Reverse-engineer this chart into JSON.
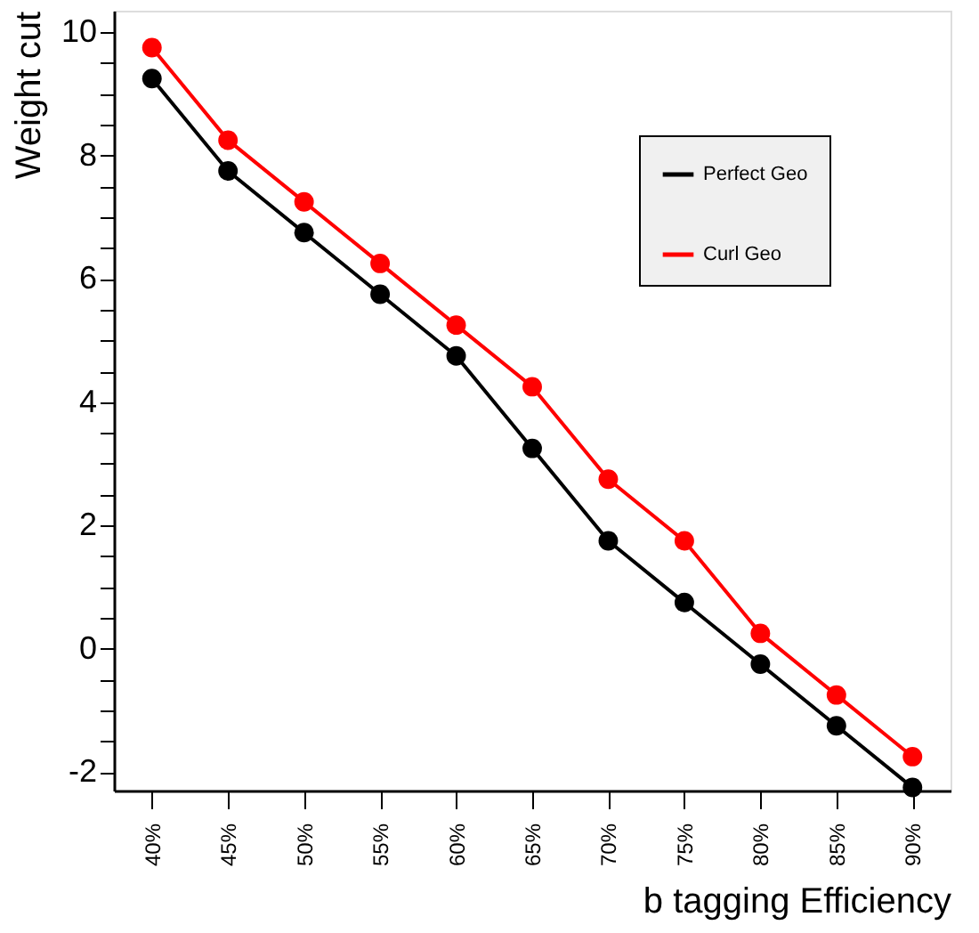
{
  "chart_data": {
    "type": "line",
    "xlabel": "b tagging Efficiency",
    "ylabel": "Weight cut",
    "categories": [
      "40%",
      "45%",
      "50%",
      "55%",
      "60%",
      "65%",
      "70%",
      "75%",
      "80%",
      "85%",
      "90%"
    ],
    "series": [
      {
        "name": "Perfect Geo",
        "color": "#000000",
        "values": [
          9.25,
          7.75,
          6.75,
          5.75,
          4.75,
          3.25,
          1.75,
          0.75,
          -0.25,
          -1.25,
          -2.25
        ]
      },
      {
        "name": "Curl Geo",
        "color": "#ff0000",
        "values": [
          9.75,
          8.25,
          7.25,
          6.25,
          5.25,
          4.25,
          2.75,
          1.75,
          0.25,
          -0.75,
          -1.75
        ]
      }
    ],
    "ylim": [
      -2.3,
      10.35
    ],
    "yticks": [
      {
        "value": -2,
        "label": "-2"
      },
      {
        "value": -1.5,
        "label": null
      },
      {
        "value": -1,
        "label": null
      },
      {
        "value": -0.5,
        "label": null
      },
      0,
      {
        "value": 0.5,
        "label": null
      },
      {
        "value": 1,
        "label": null
      },
      {
        "value": 1.5,
        "label": null
      },
      2,
      {
        "value": 2.5,
        "label": null
      },
      {
        "value": 3,
        "label": null
      },
      {
        "value": 3.5,
        "label": null
      },
      4,
      {
        "value": 4.5,
        "label": null
      },
      {
        "value": 5,
        "label": null
      },
      {
        "value": 5.5,
        "label": null
      },
      6,
      {
        "value": 6.5,
        "label": null
      },
      {
        "value": 7,
        "label": null
      },
      {
        "value": 7.5,
        "label": null
      },
      8,
      {
        "value": 8.5,
        "label": null
      },
      {
        "value": 9,
        "label": null
      },
      {
        "value": 9.5,
        "label": null
      },
      10
    ],
    "grid": false,
    "legend": "top right",
    "marker": "circle",
    "line_style": "solid"
  }
}
